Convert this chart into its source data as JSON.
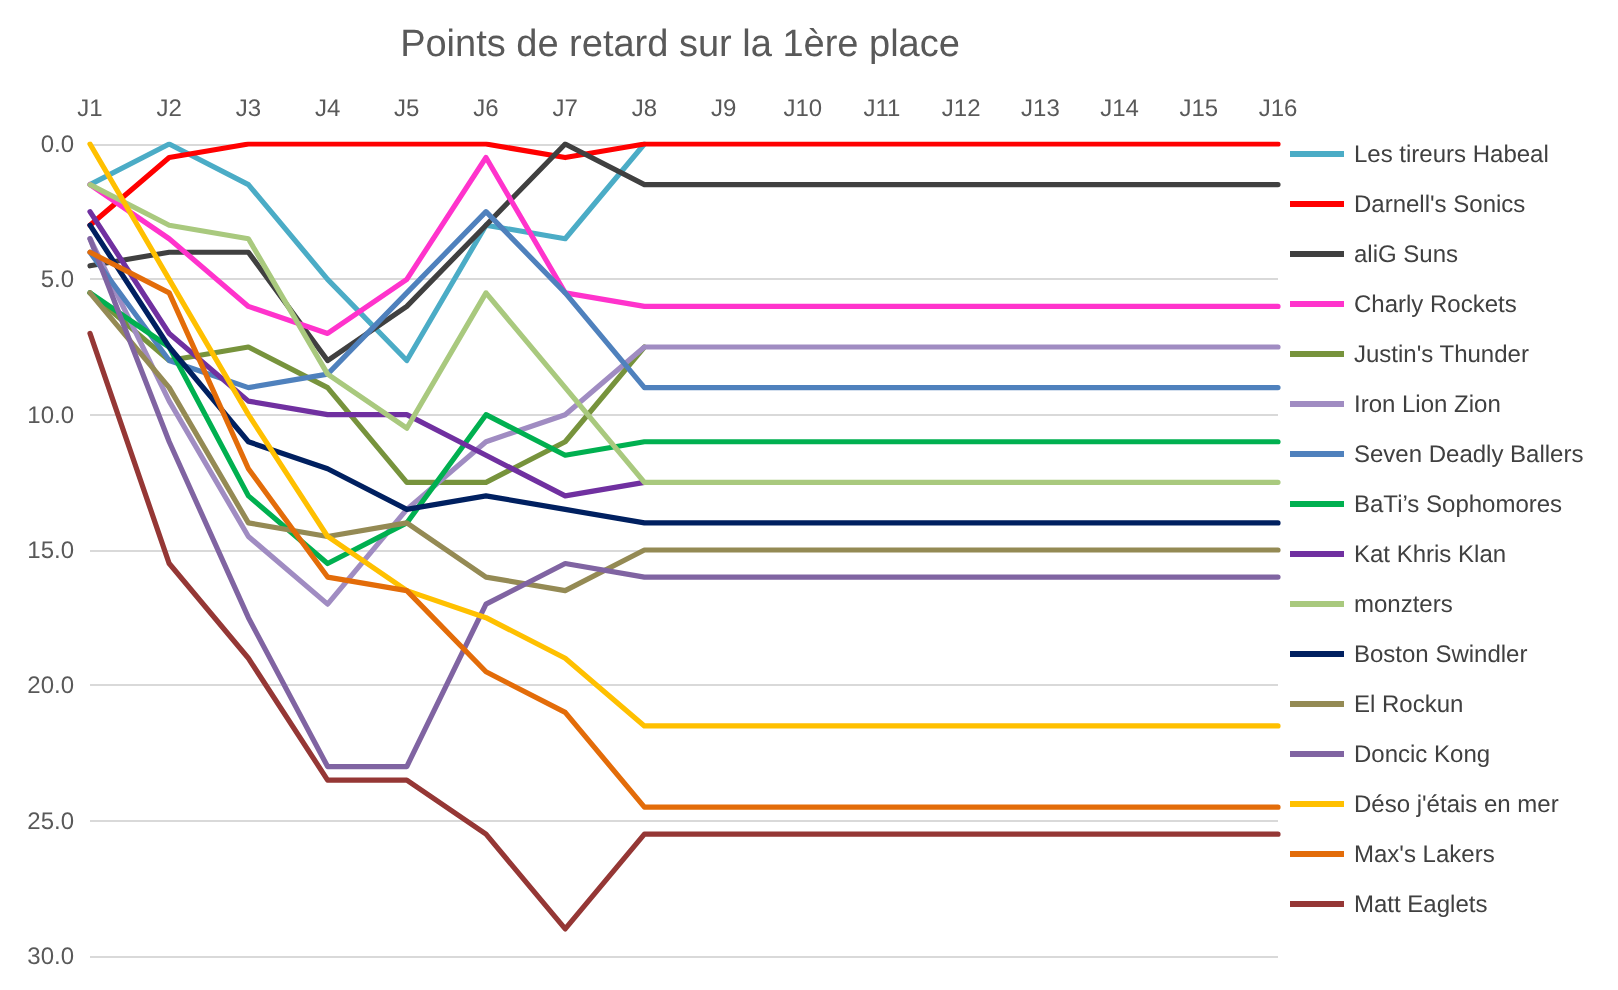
{
  "chart_data": {
    "type": "line",
    "title": "Points de retard sur la 1ère place",
    "categories": [
      "J1",
      "J2",
      "J3",
      "J4",
      "J5",
      "J6",
      "J7",
      "J8",
      "J9",
      "J10",
      "J11",
      "J12",
      "J13",
      "J14",
      "J15",
      "J16"
    ],
    "ylim": [
      30,
      0
    ],
    "yticks": [
      {
        "value": 0,
        "label": "0.0"
      },
      {
        "value": 5,
        "label": "5.0"
      },
      {
        "value": 10,
        "label": "10.0"
      },
      {
        "value": 15,
        "label": "15.0"
      },
      {
        "value": 20,
        "label": "20.0"
      },
      {
        "value": 25,
        "label": "25.0"
      },
      {
        "value": 30,
        "label": "30.0"
      }
    ],
    "grid": "y",
    "legend": "right",
    "marker": "none",
    "line_style": "solid",
    "series": [
      {
        "name": "Les tireurs Habeal",
        "color": "#4bacc6",
        "values": [
          1.5,
          0,
          1.5,
          5,
          8,
          3,
          3.5,
          0,
          null,
          null,
          null,
          null,
          null,
          null,
          null,
          null
        ]
      },
      {
        "name": "Darnell's Sonics",
        "color": "#ff0000",
        "values": [
          3,
          0.5,
          0,
          0,
          0,
          0,
          0.5,
          0,
          0,
          0,
          0,
          0,
          0,
          0,
          0,
          0
        ]
      },
      {
        "name": "aliG Suns",
        "color": "#404040",
        "values": [
          4.5,
          4,
          4,
          8,
          6,
          3,
          0,
          1.5,
          1.5,
          1.5,
          1.5,
          1.5,
          1.5,
          1.5,
          1.5,
          1.5
        ]
      },
      {
        "name": "Charly Rockets",
        "color": "#ff33cc",
        "values": [
          1.5,
          3.5,
          6,
          7,
          5,
          0.5,
          5.5,
          6,
          6,
          6,
          6,
          6,
          6,
          6,
          6,
          6
        ]
      },
      {
        "name": "Justin's Thunder",
        "color": "#77933c",
        "values": [
          5.5,
          8,
          7.5,
          9,
          12.5,
          12.5,
          11,
          7.5,
          null,
          null,
          null,
          null,
          null,
          null,
          null,
          null
        ]
      },
      {
        "name": "Iron Lion Zion",
        "color": "#a08cc2",
        "values": [
          3.5,
          9.5,
          14.5,
          17,
          13.5,
          11,
          10,
          7.5,
          7.5,
          7.5,
          7.5,
          7.5,
          7.5,
          7.5,
          7.5,
          7.5
        ]
      },
      {
        "name": "Seven Deadly Ballers",
        "color": "#4f81bd",
        "values": [
          4,
          8,
          9,
          8.5,
          5.5,
          2.5,
          5.5,
          9,
          9,
          9,
          9,
          9,
          9,
          9,
          9,
          9
        ]
      },
      {
        "name": "BaTi’s Sophomores",
        "color": "#00b050",
        "values": [
          5.5,
          7.5,
          13,
          15.5,
          14,
          10,
          11.5,
          11,
          11,
          11,
          11,
          11,
          11,
          11,
          11,
          11
        ]
      },
      {
        "name": "Kat Khris Klan",
        "color": "#7030a0",
        "values": [
          2.5,
          7,
          9.5,
          10,
          10,
          11.5,
          13,
          12.5,
          null,
          null,
          null,
          null,
          null,
          null,
          null,
          null
        ]
      },
      {
        "name": "monzters",
        "color": "#a9c97e",
        "values": [
          1.5,
          3,
          3.5,
          8.5,
          10.5,
          5.5,
          9,
          12.5,
          12.5,
          12.5,
          12.5,
          12.5,
          12.5,
          12.5,
          12.5,
          12.5
        ]
      },
      {
        "name": "Boston Swindler",
        "color": "#002060",
        "values": [
          3,
          7.5,
          11,
          12,
          13.5,
          13,
          13.5,
          14,
          14,
          14,
          14,
          14,
          14,
          14,
          14,
          14
        ]
      },
      {
        "name": "El Rockun",
        "color": "#948a54",
        "values": [
          5.5,
          9,
          14,
          14.5,
          14,
          16,
          16.5,
          15,
          15,
          15,
          15,
          15,
          15,
          15,
          15,
          15
        ]
      },
      {
        "name": "Doncic Kong",
        "color": "#8064a2",
        "values": [
          3.5,
          11,
          17.5,
          23,
          23,
          17,
          15.5,
          16,
          16,
          16,
          16,
          16,
          16,
          16,
          16,
          16
        ]
      },
      {
        "name": "Déso j'étais en mer",
        "color": "#ffc000",
        "values": [
          0,
          5,
          10,
          14.5,
          16.5,
          17.5,
          19,
          21.5,
          21.5,
          21.5,
          21.5,
          21.5,
          21.5,
          21.5,
          21.5,
          21.5
        ]
      },
      {
        "name": "Max's Lakers",
        "color": "#e36c09",
        "values": [
          4,
          5.5,
          12,
          16,
          16.5,
          19.5,
          21,
          24.5,
          24.5,
          24.5,
          24.5,
          24.5,
          24.5,
          24.5,
          24.5,
          24.5
        ]
      },
      {
        "name": "Matt Eaglets",
        "color": "#953735",
        "values": [
          7,
          15.5,
          19,
          23.5,
          23.5,
          25.5,
          29,
          25.5,
          25.5,
          25.5,
          25.5,
          25.5,
          25.5,
          25.5,
          25.5,
          25.5
        ]
      }
    ]
  }
}
